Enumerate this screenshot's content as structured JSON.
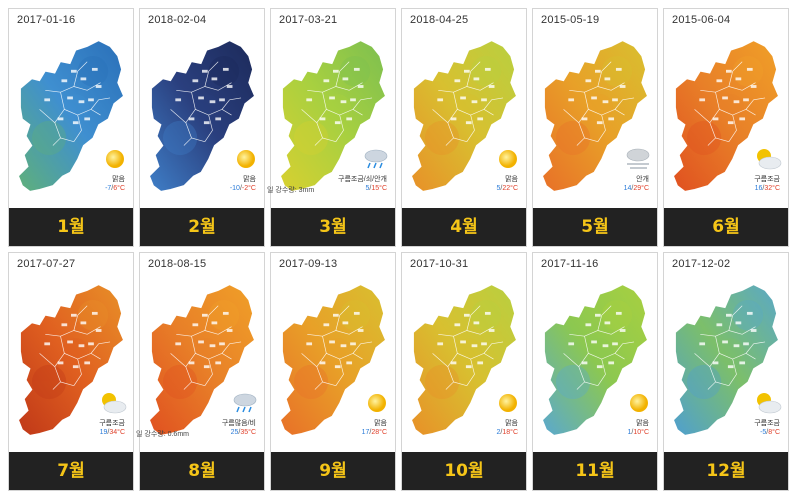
{
  "months": [
    {
      "date": "2017-01-16",
      "label": "1월",
      "condition": "맑음",
      "tmin": "-7",
      "tmax": "6°C",
      "precip": "",
      "icon": "sun-icon",
      "palette": "cold"
    },
    {
      "date": "2018-02-04",
      "label": "2월",
      "condition": "맑음",
      "tmin": "-10",
      "tmax": "-2°C",
      "precip": "",
      "icon": "sun-icon",
      "palette": "coldest"
    },
    {
      "date": "2017-03-21",
      "label": "3월",
      "condition": "구름조금/쇠/안개",
      "tmin": "5",
      "tmax": "15°C",
      "precip": "일 강수량: 3mm",
      "icon": "rain-cloud-icon",
      "palette": "cool"
    },
    {
      "date": "2018-04-25",
      "label": "4월",
      "condition": "맑음",
      "tmin": "5",
      "tmax": "22°C",
      "precip": "",
      "icon": "sun-icon",
      "palette": "mild"
    },
    {
      "date": "2015-05-19",
      "label": "5월",
      "condition": "안개",
      "tmin": "14",
      "tmax": "29°C",
      "precip": "",
      "icon": "fog-icon",
      "palette": "warm"
    },
    {
      "date": "2015-06-04",
      "label": "6월",
      "condition": "구름조금",
      "tmin": "16",
      "tmax": "32°C",
      "precip": "",
      "icon": "partly-cloudy-icon",
      "palette": "hot"
    },
    {
      "date": "2017-07-27",
      "label": "7월",
      "condition": "구름조금",
      "tmin": "19",
      "tmax": "34°C",
      "precip": "",
      "icon": "partly-cloudy-icon",
      "palette": "hottest"
    },
    {
      "date": "2018-08-15",
      "label": "8월",
      "condition": "구름많음/비",
      "tmin": "25",
      "tmax": "35°C",
      "precip": "일 강수량: 0.6mm",
      "icon": "rain-cloud-icon",
      "palette": "hot"
    },
    {
      "date": "2017-09-13",
      "label": "9월",
      "condition": "맑음",
      "tmin": "17",
      "tmax": "28°C",
      "precip": "",
      "icon": "sun-icon",
      "palette": "warm"
    },
    {
      "date": "2017-10-31",
      "label": "10월",
      "condition": "맑음",
      "tmin": "2",
      "tmax": "18°C",
      "precip": "",
      "icon": "sun-icon",
      "palette": "mild"
    },
    {
      "date": "2017-11-16",
      "label": "11월",
      "condition": "맑음",
      "tmin": "1",
      "tmax": "10°C",
      "precip": "",
      "icon": "sun-icon",
      "palette": "cool2"
    },
    {
      "date": "2017-12-02",
      "label": "12월",
      "condition": "구름조금",
      "tmin": "-5",
      "tmax": "8°C",
      "precip": "",
      "icon": "partly-cloudy-icon",
      "palette": "cold2"
    }
  ],
  "palettes": {
    "coldest": {
      "a": "#2a3f7e",
      "b": "#3f7fc8",
      "c": "#1c2a5a"
    },
    "cold": {
      "a": "#3f8fd0",
      "b": "#5fb07a",
      "c": "#2a6fb8"
    },
    "cold2": {
      "a": "#7cbf6a",
      "b": "#4f9fd0",
      "c": "#5aa8c8"
    },
    "cool": {
      "a": "#a8d040",
      "b": "#d8d030",
      "c": "#7cbf50"
    },
    "cool2": {
      "a": "#8cc850",
      "b": "#5aa8d0",
      "c": "#a8d040"
    },
    "mild": {
      "a": "#d8c030",
      "b": "#e89028",
      "c": "#b8d040"
    },
    "warm": {
      "a": "#e8a028",
      "b": "#e87028",
      "c": "#d8c030"
    },
    "hot": {
      "a": "#e88028",
      "b": "#e05020",
      "c": "#f0a028"
    },
    "hottest": {
      "a": "#e06020",
      "b": "#c03818",
      "c": "#e89028"
    }
  }
}
